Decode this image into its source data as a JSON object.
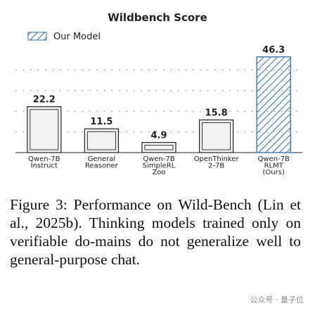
{
  "chart_data": {
    "type": "bar",
    "title": "Wildbench Score",
    "categories": [
      [
        "Qwen-7B",
        "Instruct"
      ],
      [
        "General",
        "Reasoner"
      ],
      [
        "Qwen-7B",
        "SimpleRL",
        "Zoo"
      ],
      [
        "OpenThinker",
        "2-7B"
      ],
      [
        "Qwen-7B",
        "RLMT",
        "(Ours)"
      ]
    ],
    "values": [
      22.2,
      11.5,
      4.9,
      15.8,
      46.3
    ],
    "value_labels": [
      "22.2",
      "11.5",
      "4.9",
      "15.8",
      "46.3"
    ],
    "highlight_index": 4,
    "legend": {
      "label": "Our Model",
      "placement": "top-left"
    },
    "ylim": [
      0,
      50
    ],
    "grid": "horizontal-dashed",
    "colors": {
      "bar_fill": "#f2f2f2",
      "bar_edge": "#222222",
      "ours_fill": "#ffffff",
      "ours_hatch": "#2b6fa3",
      "ours_edge": "#2b6fa3",
      "grid": "#555555"
    }
  },
  "caption": "Figure 3: Performance on Wild-Bench (Lin et al., 2025b). Thinking models trained only on verifiable do-mains do not generalize well to general-purpose chat.",
  "watermark": "公众号 · 量子位"
}
